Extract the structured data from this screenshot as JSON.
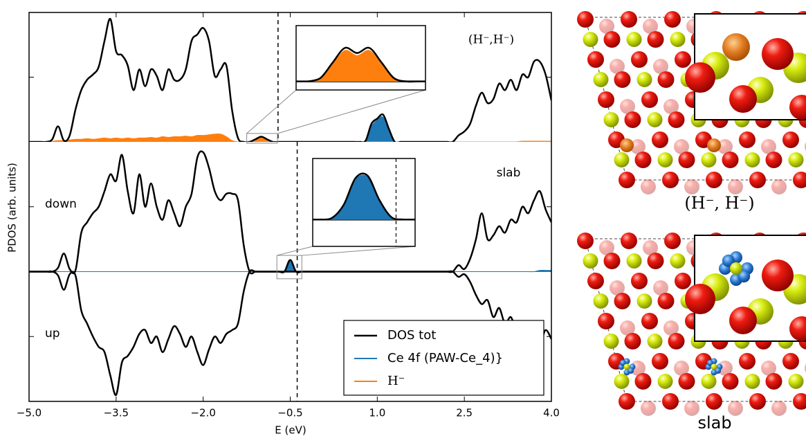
{
  "chart_data": {
    "type": "line",
    "xlabel": "E (eV)",
    "ylabel": "PDOS (arb. units)",
    "xlim": [
      -5,
      4
    ],
    "xticks": [
      {
        "value": -5,
        "label": "−5.0"
      },
      {
        "value": -3.5,
        "label": "−3.5"
      },
      {
        "value": -2,
        "label": "−2.0"
      },
      {
        "value": -0.5,
        "label": "−0.5"
      },
      {
        "value": 1,
        "label": "1.0"
      },
      2.5,
      {
        "value": 4,
        "label": "4.0"
      }
    ],
    "x": [
      -5,
      -4.9,
      -4.8,
      -4.7,
      -4.6,
      -4.5,
      -4.4,
      -4.3,
      -4.2,
      -4.1,
      -4,
      -3.9,
      -3.8,
      -3.7,
      -3.6,
      -3.5,
      -3.4,
      -3.3,
      -3.2,
      -3.1,
      -3,
      -2.9,
      -2.8,
      -2.7,
      -2.6,
      -2.5,
      -2.4,
      -2.3,
      -2.2,
      -2.1,
      -2,
      -1.9,
      -1.8,
      -1.7,
      -1.6,
      -1.5,
      -1.4,
      -1.3,
      -1.2,
      -1.1,
      -1,
      -0.9,
      -0.8,
      -0.7,
      -0.6,
      -0.5,
      -0.4,
      -0.3,
      -0.2,
      -0.1,
      0,
      0.1,
      0.2,
      0.3,
      0.4,
      0.5,
      0.6,
      0.7,
      0.8,
      0.9,
      1,
      1.1,
      1.2,
      1.3,
      1.4,
      1.5,
      1.6,
      1.7,
      1.8,
      1.9,
      2,
      2.1,
      2.2,
      2.3,
      2.4,
      2.5,
      2.6,
      2.7,
      2.8,
      2.9,
      3,
      3.1,
      3.2,
      3.3,
      3.4,
      3.5,
      3.6,
      3.7,
      3.8,
      3.9,
      4
    ],
    "legend": "lower right",
    "panels": [
      {
        "label": "(H⁻,H⁻)",
        "ylim": [
          0,
          100
        ],
        "yticks": [
          50
        ],
        "fermi": -0.71,
        "series": [
          {
            "name": "DOS tot",
            "color": "#000000",
            "values": [
              0,
              0,
              0,
              0,
              2,
              12,
              1,
              5,
              25,
              40,
              48,
              52,
              58,
              78,
              95,
              70,
              67,
              59,
              40,
              56,
              43,
              56,
              51,
              40,
              56,
              48,
              48,
              56,
              78,
              83,
              88,
              78,
              51,
              56,
              59,
              24,
              3,
              0,
              0,
              2,
              4,
              2,
              0,
              0,
              0,
              0,
              0,
              0,
              0,
              0,
              0,
              0,
              0,
              0,
              0,
              0,
              0,
              0,
              1,
              14,
              18,
              21,
              10,
              0,
              0,
              0,
              0,
              0,
              0,
              0,
              0,
              0,
              0,
              0,
              5,
              8,
              14,
              28,
              38,
              30,
              33,
              45,
              40,
              48,
              40,
              52,
              50,
              62,
              62,
              52,
              32
            ]
          },
          {
            "name": "Ce 4f (PAW-Ce_4)}",
            "color": "#1f77b4",
            "fill": true,
            "values": [
              0,
              0,
              0,
              0,
              0,
              0,
              0,
              0,
              0,
              0,
              0,
              0,
              0,
              0,
              0,
              0,
              0,
              0,
              0,
              0,
              0,
              0,
              0,
              0,
              0,
              0,
              0,
              0,
              0,
              0,
              0,
              0,
              0,
              0,
              0,
              0,
              0,
              0,
              0,
              0,
              0,
              0,
              0,
              0,
              0,
              0,
              0,
              0,
              0,
              0,
              0,
              0,
              0,
              0,
              0,
              0,
              0,
              0,
              0,
              12,
              17,
              19,
              8,
              0,
              0,
              0,
              0,
              0,
              0,
              0,
              0,
              0,
              0,
              0,
              0,
              0,
              0,
              0,
              0,
              0,
              0,
              0,
              0,
              0,
              0,
              0,
              0,
              0,
              0,
              0,
              0
            ]
          },
          {
            "name": "H⁻",
            "color": "#ff7f0e",
            "fill": true,
            "values": [
              0,
              0,
              0,
              0,
              0.5,
              1,
              1,
              1.5,
              2,
              2,
              2.5,
              2,
              2.5,
              3,
              2.5,
              3,
              2.5,
              3,
              2.5,
              3,
              3,
              3.5,
              3,
              4,
              3.5,
              4,
              4,
              4.5,
              4,
              5,
              5,
              5.5,
              6,
              6,
              4,
              1,
              0,
              0,
              0,
              2,
              3.8,
              2,
              0,
              0,
              0,
              0,
              0,
              0,
              0,
              0,
              0,
              0,
              0,
              0,
              0,
              0,
              0,
              0,
              0,
              0,
              0,
              0,
              0,
              0,
              0,
              0,
              0,
              0,
              0,
              0,
              0,
              0,
              0,
              0,
              0,
              0,
              0,
              0,
              0,
              0,
              0,
              0,
              0,
              0,
              0,
              0.5,
              0.5,
              0.5,
              0.5,
              0.5,
              0.5
            ]
          }
        ],
        "inset": {
          "xlim": [
            -1.25,
            -0.72
          ],
          "ylim": [
            -1,
            6.5
          ],
          "x": [
            -1.2,
            -1.15,
            -1.1,
            -1.05,
            -1,
            -0.95,
            -0.9,
            -0.85,
            -0.8,
            -0.75
          ],
          "series": [
            {
              "color": "#ff7f0e",
              "fill": true,
              "values": [
                0,
                0.3,
                2,
                3.6,
                3,
                3.6,
                2,
                0.3,
                0,
                0
              ]
            },
            {
              "color": "#000000",
              "values": [
                0,
                0.4,
                2.2,
                3.9,
                3.3,
                3.9,
                2.2,
                0.4,
                0,
                0
              ]
            }
          ]
        }
      },
      {
        "label": "slab",
        "ylim": [
          -100,
          100
        ],
        "yticks": [
          -50,
          50
        ],
        "fermi": -0.38,
        "series": [
          {
            "color": "#1f77b4",
            "fill": true,
            "values": [
              0,
              0,
              0,
              0,
              0,
              0,
              0,
              0,
              0,
              0,
              0,
              0,
              0,
              0,
              0,
              0,
              0,
              0,
              0,
              0,
              0,
              0,
              0,
              0,
              0,
              0,
              0,
              0,
              0,
              0,
              0,
              0,
              0,
              0,
              0,
              0,
              0,
              0,
              0,
              0,
              0,
              0,
              0,
              0,
              0,
              8,
              0,
              0,
              0,
              0,
              0,
              0,
              0,
              0,
              0,
              0,
              0,
              0,
              0,
              0,
              0,
              0,
              0,
              0,
              0,
              0,
              0,
              0,
              0,
              0,
              0,
              0,
              0,
              0,
              0,
              0,
              0,
              0,
              0,
              0,
              0,
              0,
              0,
              0,
              0,
              0,
              0,
              0,
              1,
              1,
              1
            ]
          },
          {
            "name": "down",
            "color": "#000000",
            "values": [
              0,
              0,
              0,
              0,
              0,
              3,
              14,
              2,
              1,
              30,
              38,
              45,
              50,
              62,
              75,
              70,
              90,
              62,
              45,
              75,
              50,
              68,
              50,
              40,
              55,
              45,
              35,
              50,
              60,
              88,
              92,
              80,
              62,
              55,
              60,
              60,
              55,
              20,
              0,
              0,
              0,
              0,
              0,
              0,
              0,
              9,
              0,
              0,
              0,
              0,
              0,
              0,
              0,
              0,
              0,
              0,
              0,
              0,
              0,
              0,
              0,
              0,
              0,
              0,
              0,
              0,
              0,
              0,
              0,
              0,
              0,
              0,
              0,
              0,
              5,
              2,
              10,
              25,
              45,
              25,
              28,
              35,
              30,
              40,
              38,
              50,
              45,
              55,
              62,
              48,
              38
            ]
          },
          {
            "name": "up",
            "color": "#000000",
            "values": [
              0,
              0,
              0,
              0,
              0,
              -3,
              -14,
              -2,
              -3,
              -30,
              -40,
              -50,
              -58,
              -62,
              -80,
              -95,
              -70,
              -65,
              -58,
              -48,
              -45,
              -55,
              -50,
              -62,
              -52,
              -42,
              -48,
              -58,
              -50,
              -62,
              -72,
              -60,
              -50,
              -55,
              -48,
              -45,
              -40,
              -15,
              0,
              0,
              0,
              0,
              0,
              0,
              0,
              0,
              0,
              0,
              0,
              0,
              0,
              0,
              0,
              0,
              0,
              0,
              0,
              0,
              0,
              0,
              0,
              0,
              0,
              0,
              0,
              0,
              0,
              0,
              0,
              0,
              0,
              0,
              0,
              0,
              -4,
              -2,
              -8,
              -18,
              -25,
              -22,
              -35,
              -28,
              -40,
              -35,
              -45,
              -40,
              -48,
              -42,
              -55,
              -45,
              -52
            ]
          }
        ],
        "inset": {
          "xlim": [
            -0.73,
            -0.3
          ],
          "ylim": [
            -5.5,
            12.5
          ],
          "x": [
            -0.7,
            -0.65,
            -0.6,
            -0.55,
            -0.5,
            -0.45,
            -0.4,
            -0.35
          ],
          "series": [
            {
              "color": "#1f77b4",
              "fill": true,
              "values": [
                0,
                0.3,
                2.8,
                8.2,
                8.7,
                3.8,
                0.4,
                0
              ]
            },
            {
              "color": "#000000",
              "values": [
                0,
                0.3,
                3,
                8.5,
                9,
                4,
                0.5,
                0
              ]
            }
          ]
        }
      }
    ]
  },
  "structures": [
    {
      "caption": "(H⁻, H⁻)"
    },
    {
      "caption": "slab"
    }
  ]
}
